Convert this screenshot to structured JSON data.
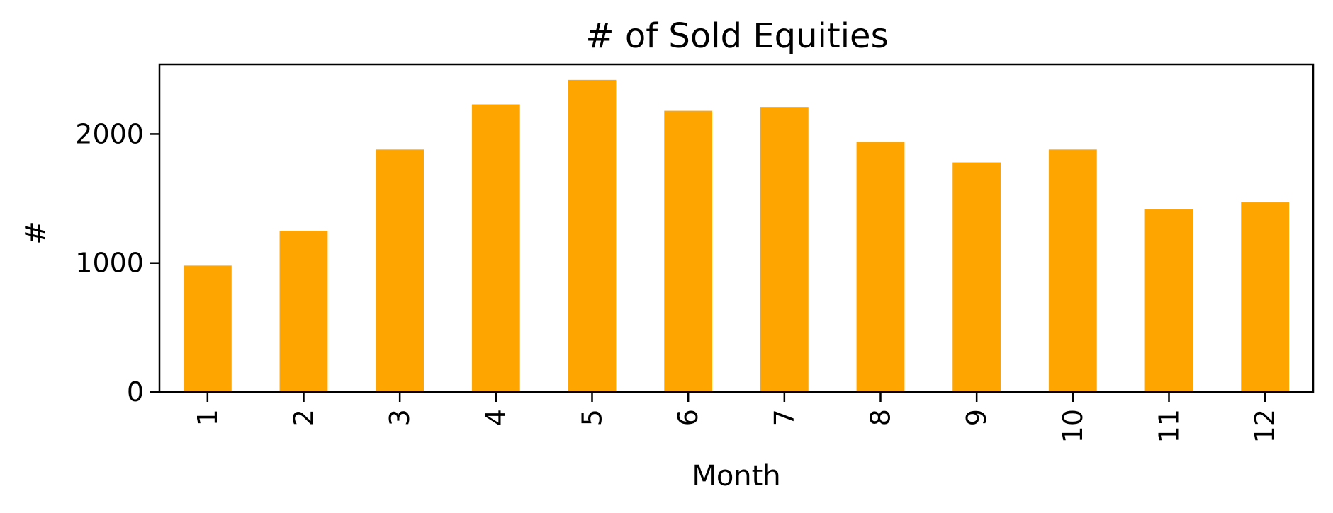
{
  "chart_data": {
    "type": "bar",
    "title": "# of Sold Equities",
    "xlabel": "Month",
    "ylabel": "#",
    "categories": [
      "1",
      "2",
      "3",
      "4",
      "5",
      "6",
      "7",
      "8",
      "9",
      "10",
      "11",
      "12"
    ],
    "values": [
      980,
      1250,
      1880,
      2230,
      2420,
      2180,
      2210,
      1940,
      1780,
      1880,
      1420,
      1470
    ],
    "ylim": [
      0,
      2540
    ],
    "yticks": [
      0,
      1000,
      2000
    ],
    "bar_color": "#FFA500",
    "grid": false,
    "legend": false
  }
}
